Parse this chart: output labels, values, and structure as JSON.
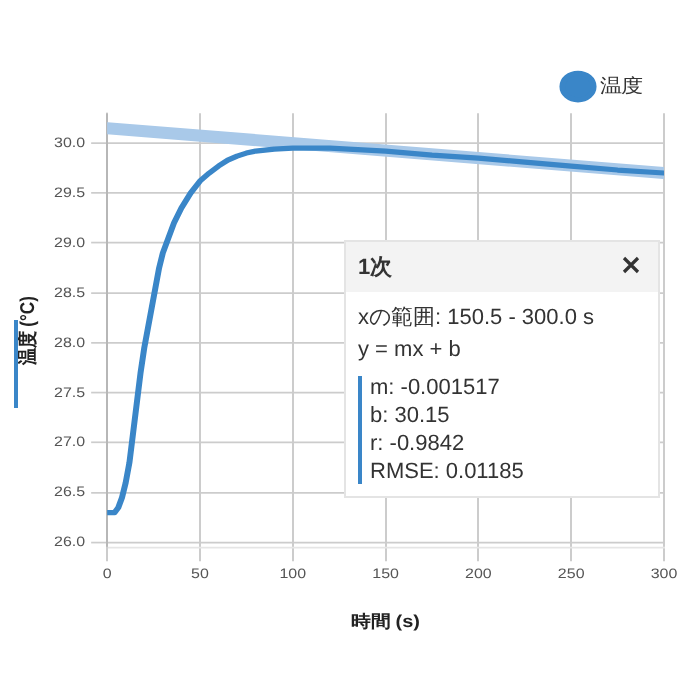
{
  "chart_data": {
    "type": "line",
    "xlabel": "時間 (s)",
    "ylabel": "温度 (°C)",
    "xlim": [
      0,
      300
    ],
    "xticks": [
      0,
      50,
      100,
      150,
      200,
      250,
      300
    ],
    "ylim": [
      25.95,
      30.3
    ],
    "yticks": [
      {
        "value": 26,
        "label": "26.0"
      },
      26.5,
      {
        "value": 27,
        "label": "27.0"
      },
      27.5,
      {
        "value": 28,
        "label": "28.0"
      },
      28.5,
      {
        "value": 29,
        "label": "29.0"
      },
      29.5,
      {
        "value": 30,
        "label": "30.0"
      }
    ],
    "grid": true,
    "legend": "top right",
    "marker": "none",
    "line_style": "solid",
    "series": [
      {
        "name": "温度",
        "color": "#3a86c8",
        "x": [
          0,
          2,
          4,
          6,
          8,
          10,
          12,
          14,
          16,
          18,
          20,
          22,
          24,
          26,
          28,
          30,
          33,
          36,
          40,
          45,
          50,
          55,
          60,
          65,
          70,
          75,
          80,
          90,
          100,
          110,
          120,
          130,
          140,
          150,
          175,
          200,
          225,
          250,
          275,
          300
        ],
        "values": [
          26.3,
          26.3,
          26.3,
          26.35,
          26.45,
          26.6,
          26.8,
          27.1,
          27.4,
          27.7,
          27.95,
          28.15,
          28.35,
          28.55,
          28.75,
          28.9,
          29.05,
          29.2,
          29.35,
          29.5,
          29.62,
          29.7,
          29.77,
          29.83,
          29.87,
          29.9,
          29.92,
          29.94,
          29.95,
          29.95,
          29.95,
          29.94,
          29.93,
          29.92,
          29.88,
          29.85,
          29.81,
          29.77,
          29.73,
          29.7
        ]
      },
      {
        "type": "line",
        "color": "#a9c9e9",
        "x": [
          0,
          300
        ],
        "values": [
          30.15,
          29.7
        ]
      }
    ],
    "annotations": [
      "1次",
      "xの範囲: 150.5 - 300.0 s",
      "y = mx + b",
      "m: -0.001517",
      "b: 30.15",
      "r: -0.9842",
      "RMSE: 0.01185"
    ]
  }
}
